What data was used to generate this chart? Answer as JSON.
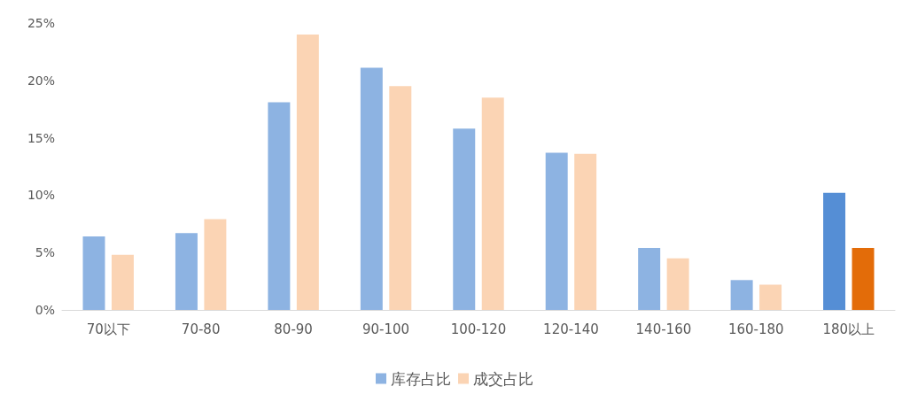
{
  "chart_data": {
    "type": "bar",
    "categories": [
      "70以下",
      "70-80",
      "80-90",
      "90-100",
      "100-120",
      "120-140",
      "140-160",
      "160-180",
      "180以上"
    ],
    "series": [
      {
        "name": "库存占比",
        "color": "#8db3e2",
        "colors": [
          "#8db3e2",
          "#8db3e2",
          "#8db3e2",
          "#8db3e2",
          "#8db3e2",
          "#8db3e2",
          "#8db3e2",
          "#8db3e2",
          "#558ed5"
        ],
        "values": [
          6.4,
          6.7,
          18.1,
          21.1,
          15.8,
          13.7,
          5.4,
          2.6,
          10.2
        ]
      },
      {
        "name": "成交占比",
        "color": "#fbd4b4",
        "colors": [
          "#fbd4b4",
          "#fbd4b4",
          "#fbd4b4",
          "#fbd4b4",
          "#fbd4b4",
          "#fbd4b4",
          "#fbd4b4",
          "#fbd4b4",
          "#e36c09"
        ],
        "values": [
          4.8,
          7.9,
          24.0,
          19.5,
          18.5,
          13.6,
          4.5,
          2.2,
          5.4
        ]
      }
    ],
    "ylim": [
      0,
      25
    ],
    "yticks": [
      {
        "value": 0,
        "label": "0%"
      },
      {
        "value": 5,
        "label": "5%"
      },
      {
        "value": 10,
        "label": "10%"
      },
      {
        "value": 15,
        "label": "15%"
      },
      {
        "value": 20,
        "label": "20%"
      },
      {
        "value": 25,
        "label": "25%"
      }
    ],
    "grid": false,
    "legend": "bottom"
  }
}
